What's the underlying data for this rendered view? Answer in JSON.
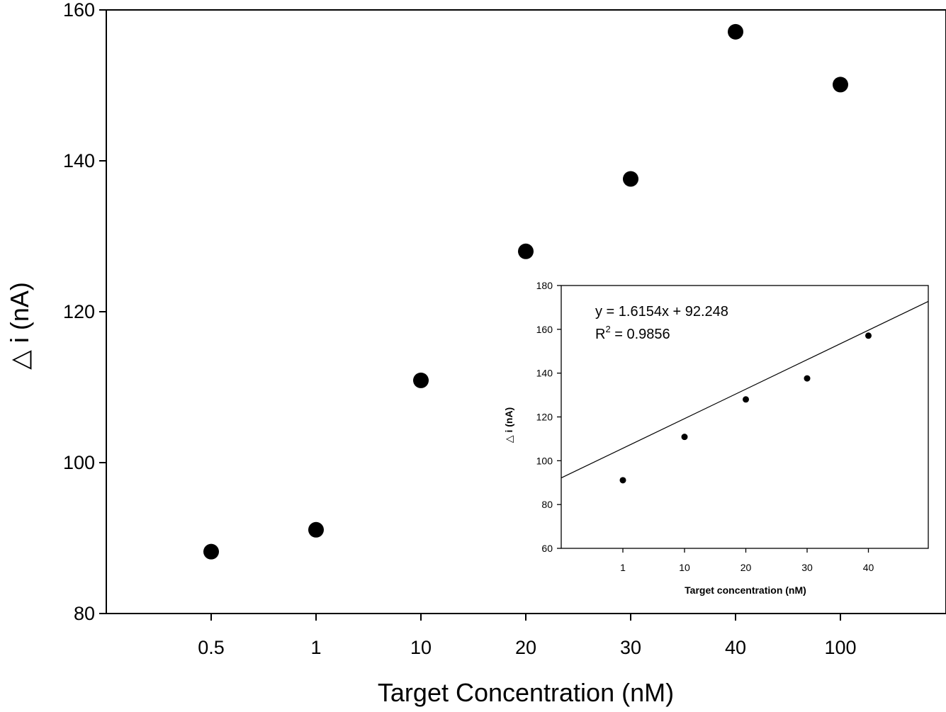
{
  "chart_data": [
    {
      "type": "scatter",
      "xlabel": "Target Concentration (nM)",
      "ylabel": "△ i (nA)",
      "categories": [
        "0.5",
        "1",
        "10",
        "20",
        "30",
        "40",
        "100"
      ],
      "values": [
        88.2,
        91.1,
        110.9,
        128.0,
        137.6,
        157.1,
        150.1
      ],
      "ylim": [
        80,
        160
      ],
      "yticks": [
        80,
        100,
        120,
        140,
        160
      ],
      "grid": false,
      "marker_color": "#000000"
    },
    {
      "type": "scatter",
      "xlabel": "Target concentration (nM)",
      "ylabel": "△ i (nA)",
      "x": [
        1,
        10,
        20,
        30,
        40
      ],
      "y": [
        91.1,
        110.9,
        128.0,
        137.6,
        157.1
      ],
      "xticks": [
        1,
        10,
        20,
        30,
        40
      ],
      "ylim": [
        60,
        180
      ],
      "yticks": [
        60,
        80,
        100,
        120,
        140,
        160,
        180
      ],
      "fit": {
        "slope": 1.6154,
        "intercept": 92.248
      },
      "annotation": {
        "equation": "y = 1.6154x + 92.248",
        "r2_prefix": "R",
        "r2_exp": "2",
        "r2_value": " = 0.9856"
      },
      "grid": false,
      "marker_color": "#000000"
    }
  ]
}
